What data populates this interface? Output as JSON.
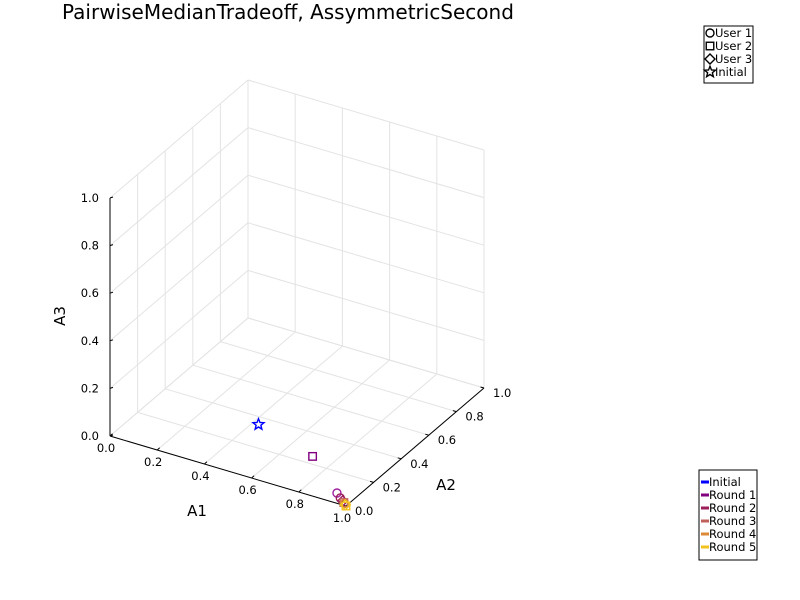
{
  "chart_data": {
    "type": "scatter",
    "title": "PairwiseMedianTradeoff, AssymmetricSecond",
    "xlabel": "A1",
    "ylabel": "A2",
    "zlabel": "A3",
    "xlim": [
      0,
      1
    ],
    "ylim": [
      0,
      1
    ],
    "zlim": [
      0,
      1
    ],
    "x_ticks": [
      "0.0",
      "0.2",
      "0.4",
      "0.6",
      "0.8",
      "1.0"
    ],
    "y_ticks": [
      "0.0",
      "0.2",
      "0.4",
      "0.6",
      "0.8",
      "1.0"
    ],
    "z_ticks": [
      "0.0",
      "0.2",
      "0.4",
      "0.6",
      "0.8",
      "1.0"
    ],
    "grid": true,
    "marker_legend": {
      "placement": "top-right",
      "entries": [
        {
          "name": "User 1",
          "marker": "circle"
        },
        {
          "name": "User 2",
          "marker": "square"
        },
        {
          "name": "User 3",
          "marker": "diamond"
        },
        {
          "name": "Initial",
          "marker": "star"
        }
      ]
    },
    "color_legend": {
      "placement": "bottom-right",
      "entries": [
        {
          "name": "Initial",
          "color": "#0000ff"
        },
        {
          "name": "Round 1",
          "color": "#800080"
        },
        {
          "name": "Round 2",
          "color": "#9b1f5a"
        },
        {
          "name": "Round 3",
          "color": "#c0605a"
        },
        {
          "name": "Round 4",
          "color": "#dc8a3a"
        },
        {
          "name": "Round 5",
          "color": "#f2c21e"
        }
      ]
    },
    "points": [
      {
        "series": "Initial",
        "marker": "star",
        "x": 0.6,
        "y": 0.05,
        "z": 0.2,
        "color": "#0000ff"
      },
      {
        "series": "Round 1",
        "marker": "square",
        "x": 0.8,
        "y": 0.1,
        "z": 0.1,
        "color": "#800080"
      },
      {
        "series": "Round 1",
        "marker": "circle",
        "x": 0.95,
        "y": 0.02,
        "z": 0.03,
        "color": "#a020a0"
      },
      {
        "series": "Round 2",
        "marker": "circle",
        "x": 0.97,
        "y": 0.01,
        "z": 0.02,
        "color": "#9b1f5a"
      },
      {
        "series": "Round 2",
        "marker": "diamond",
        "x": 0.98,
        "y": 0.01,
        "z": 0.01,
        "color": "#9b1f5a"
      },
      {
        "series": "Round 3",
        "marker": "square",
        "x": 0.985,
        "y": 0.01,
        "z": 0.005,
        "color": "#c0605a"
      },
      {
        "series": "Round 4",
        "marker": "circle",
        "x": 0.99,
        "y": 0.005,
        "z": 0.005,
        "color": "#dc8a3a"
      },
      {
        "series": "Round 5",
        "marker": "diamond",
        "x": 0.995,
        "y": 0.003,
        "z": 0.002,
        "color": "#f2c21e"
      },
      {
        "series": "Round 5",
        "marker": "square",
        "x": 1.0,
        "y": 0.0,
        "z": 0.0,
        "color": "#f2c21e"
      }
    ]
  }
}
